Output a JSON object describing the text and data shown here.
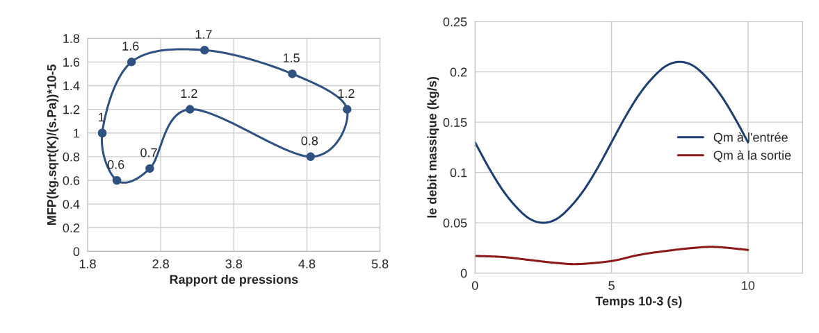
{
  "chart_data": [
    {
      "type": "scatter",
      "xlabel": "Rapport de pressions",
      "ylabel": "MFP(kg.sqrt(K)/(s.Pa))*10-5",
      "xlim": [
        1.8,
        5.8
      ],
      "xticks": [
        1.8,
        2.8,
        3.8,
        4.8,
        5.8
      ],
      "ylim": [
        0,
        1.8
      ],
      "yticks": [
        0,
        0.2,
        0.4,
        0.6,
        0.8,
        1,
        1.2,
        1.4,
        1.6,
        1.8
      ],
      "grid": true,
      "marker": "circle",
      "line_style": "solid",
      "legend": false,
      "series": [
        {
          "color": "#2f5282",
          "x": [
            2.0,
            2.2,
            2.65,
            3.2,
            4.85,
            5.35,
            4.6,
            3.4,
            2.4,
            2.0
          ],
          "values": [
            1,
            0.6,
            0.7,
            1.2,
            0.8,
            1.2,
            1.5,
            1.7,
            1.6,
            1
          ],
          "value_labels": [
            "1",
            "0.6",
            "0.7",
            "1.2",
            "0.8",
            "1.2",
            "1.5",
            "1.7",
            "1.6",
            null
          ]
        }
      ]
    },
    {
      "type": "line",
      "xlabel": "Temps 10-3 (s)",
      "ylabel": "le debit massique (kg/s)",
      "xlim": [
        0,
        12
      ],
      "xticks": [
        0,
        5,
        10
      ],
      "ylim": [
        0,
        0.25
      ],
      "yticks": [
        0,
        0.05,
        0.1,
        0.15,
        0.2,
        0.25
      ],
      "grid": true,
      "legend": "right",
      "line_style": "solid",
      "series": [
        {
          "name": "Qm à l'entrée",
          "color": "#1f3f73",
          "x": [
            0,
            0.5,
            1,
            1.5,
            2,
            2.5,
            3,
            3.5,
            4,
            4.5,
            5,
            5.5,
            6,
            6.5,
            7,
            7.5,
            8,
            8.5,
            9,
            9.5,
            10
          ],
          "values": [
            0.13,
            0.105,
            0.083,
            0.066,
            0.054,
            0.05,
            0.054,
            0.066,
            0.083,
            0.105,
            0.13,
            0.155,
            0.177,
            0.194,
            0.206,
            0.21,
            0.206,
            0.194,
            0.177,
            0.155,
            0.13
          ]
        },
        {
          "name": "Qm à la sortie",
          "color": "#8b1a1a",
          "x": [
            0,
            1,
            2,
            3,
            3.8,
            5,
            6,
            7,
            8,
            8.8,
            10
          ],
          "values": [
            0.017,
            0.016,
            0.013,
            0.01,
            0.009,
            0.012,
            0.018,
            0.022,
            0.025,
            0.026,
            0.023
          ]
        }
      ]
    }
  ]
}
